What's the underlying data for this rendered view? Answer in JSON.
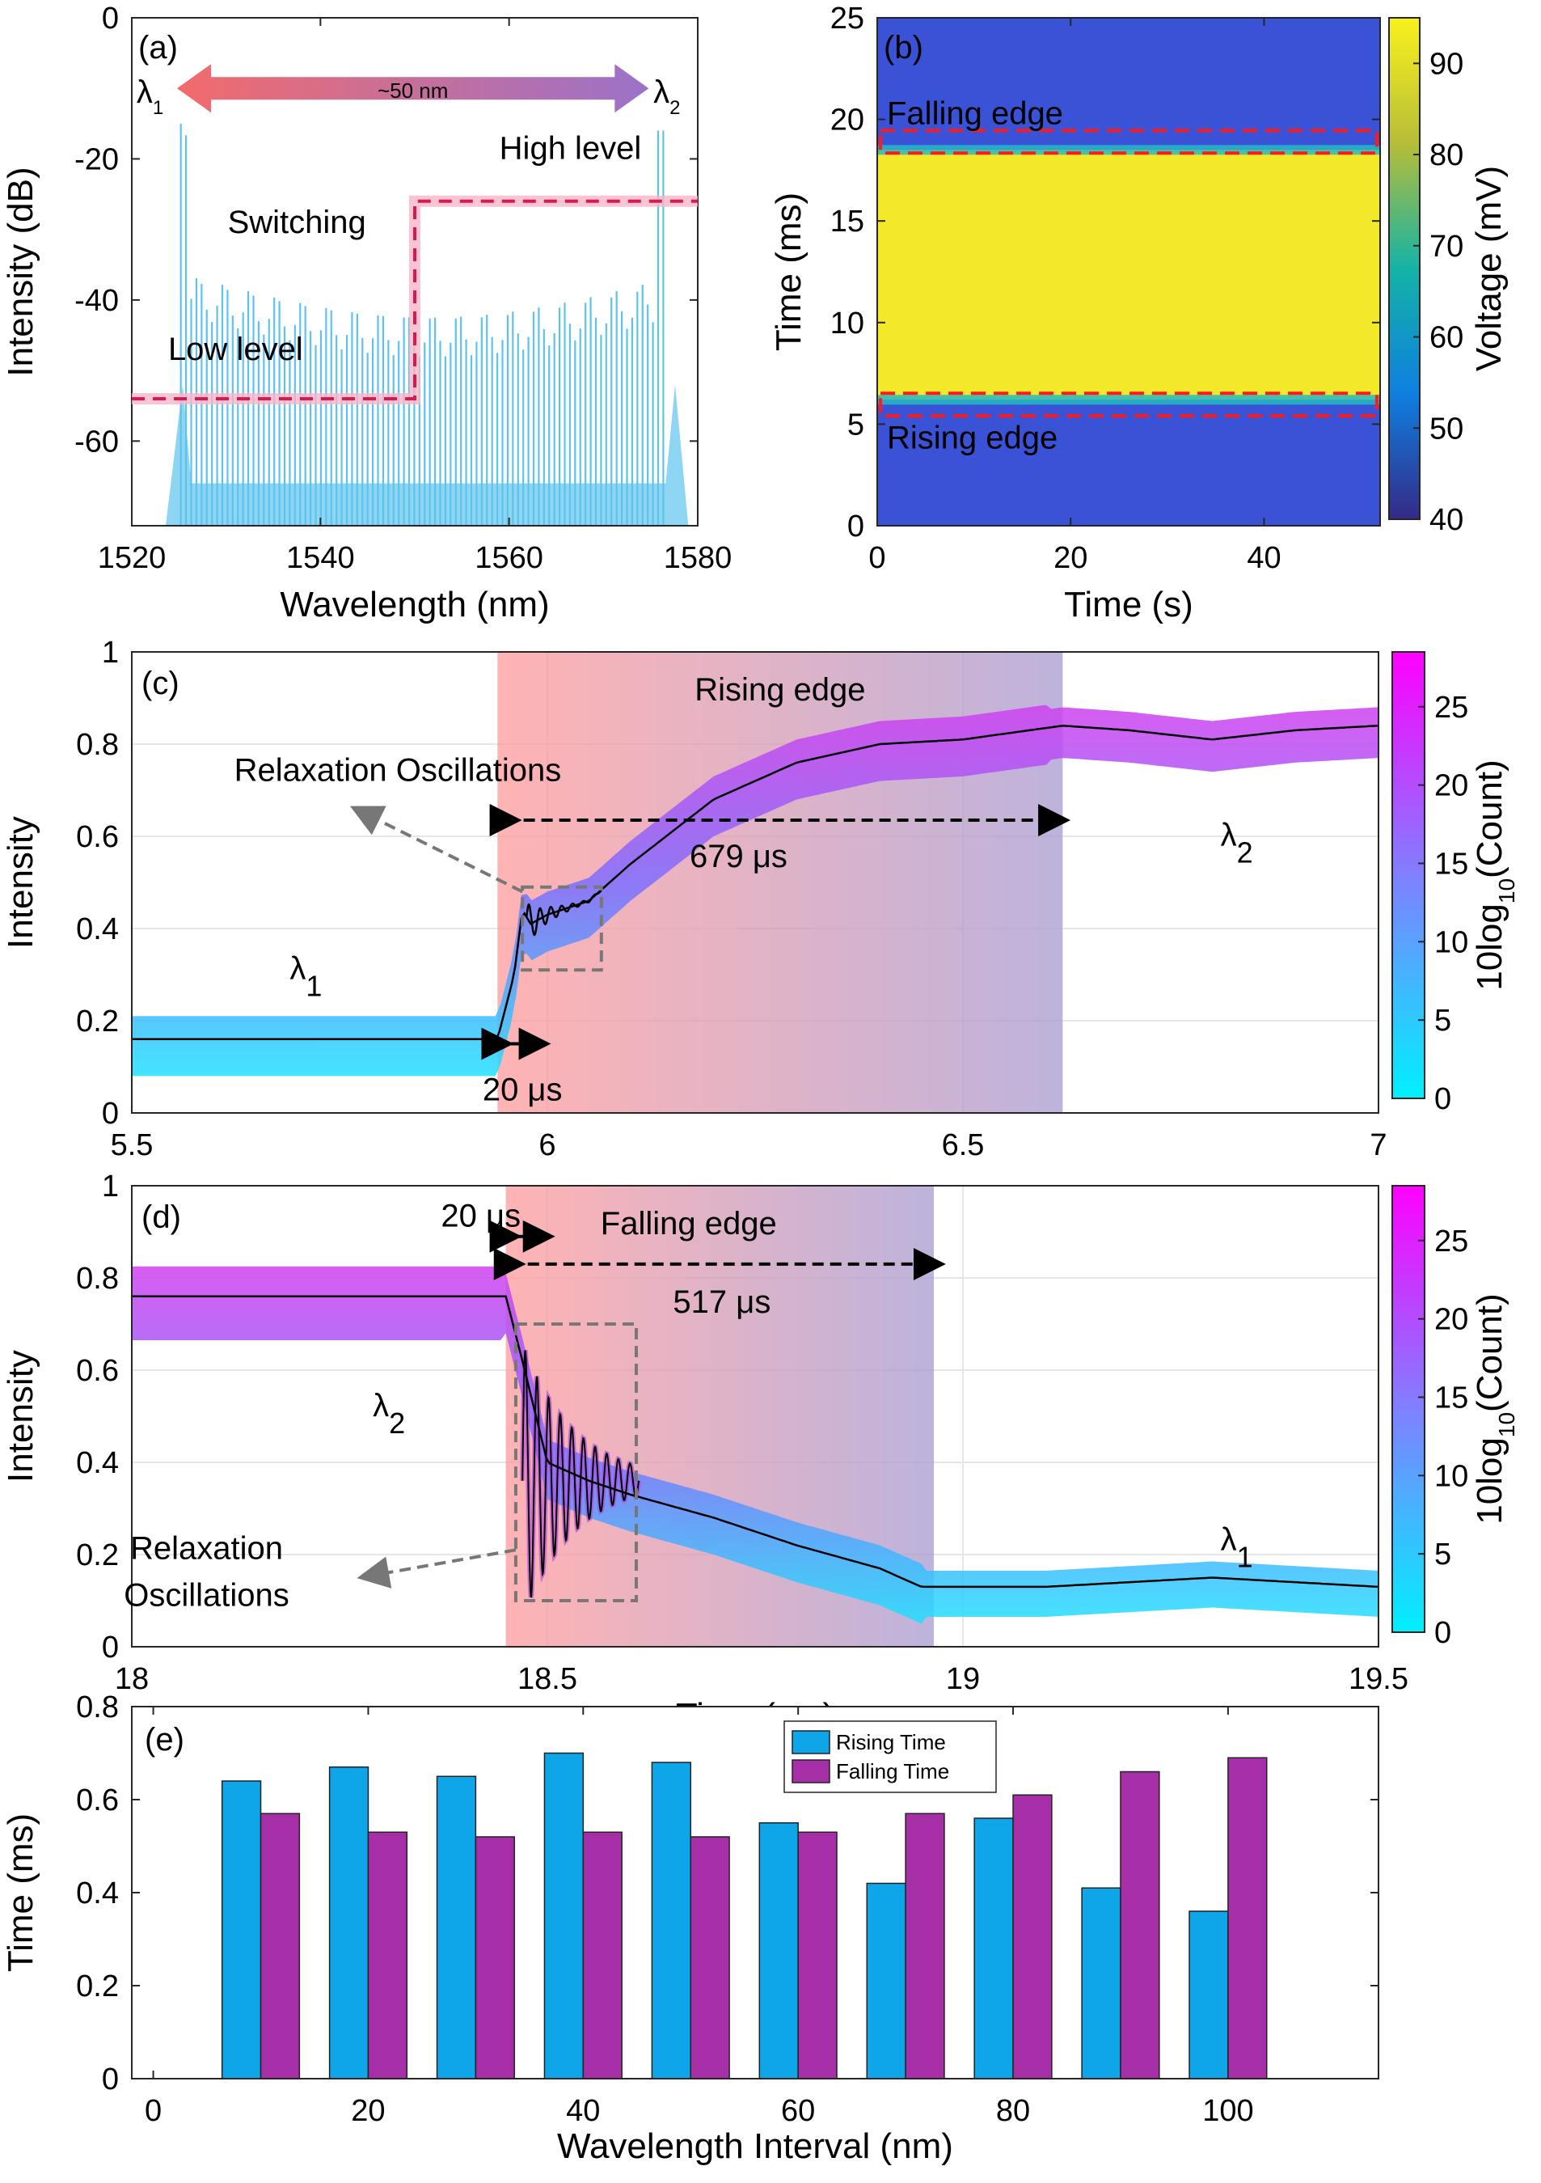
{
  "chart_data": [
    {
      "id": "a",
      "type": "line",
      "panel_label": "(a)",
      "xlabel": "Wavelength (nm)",
      "ylabel": "Intensity (dB)",
      "xlim": [
        1520,
        1580
      ],
      "ylim": [
        -72,
        0
      ],
      "xticks": [
        "1520",
        "1540",
        "1560",
        "1580"
      ],
      "yticks": [
        "0",
        "-20",
        "-40",
        "-60"
      ],
      "annotations": {
        "lambda1": "λ",
        "lambda1_sub": "1",
        "lambda2": "λ",
        "lambda2_sub": "2",
        "span": "~50 nm",
        "high_level": "High level",
        "low_level": "Low level",
        "switching": "Switching"
      },
      "series_color": "#5cc3ee",
      "switch_level_dB": {
        "low": -54,
        "high": -26,
        "switch_nm": 1550
      }
    },
    {
      "id": "b",
      "type": "heatmap",
      "panel_label": "(b)",
      "xlabel": "Time (s)",
      "ylabel": "Time (ms)",
      "xlim": [
        0,
        52
      ],
      "ylim": [
        0,
        25
      ],
      "xticks": [
        "0",
        "20",
        "40"
      ],
      "yticks": [
        "0",
        "5",
        "10",
        "15",
        "20",
        "25"
      ],
      "colorbar": {
        "label": "Voltage (mV)",
        "range": [
          40,
          95
        ],
        "ticks": [
          "40",
          "50",
          "60",
          "70",
          "80",
          "90"
        ]
      },
      "annotations": {
        "falling": "Falling edge",
        "rising": "Rising edge"
      },
      "high_band_ms": [
        6.2,
        18.5
      ]
    },
    {
      "id": "c",
      "type": "line",
      "panel_label": "(c)",
      "xlabel": "",
      "ylabel": "Intensity",
      "xlim": [
        5.5,
        7
      ],
      "ylim": [
        0,
        1
      ],
      "xticks": [
        "5.5",
        "6",
        "6.5",
        "7"
      ],
      "yticks": [
        "0",
        "0.2",
        "0.4",
        "0.6",
        "0.8",
        "1"
      ],
      "colorbar": {
        "label": "10log10(Count)",
        "ticks": [
          "0",
          "5",
          "10",
          "15",
          "20",
          "25"
        ]
      },
      "annotations": {
        "edge": "Rising edge",
        "relax": "Relaxation Oscillations",
        "duration": "679 μs",
        "delay": "20 μs",
        "lambda_left": "λ",
        "lambda_left_sub": "1",
        "lambda_right": "λ",
        "lambda_right_sub": "2"
      },
      "mean_curve": {
        "x": [
          5.5,
          5.94,
          5.96,
          5.97,
          5.98,
          6.0,
          6.05,
          6.1,
          6.15,
          6.2,
          6.3,
          6.4,
          6.5,
          6.62,
          6.7,
          6.8,
          6.9,
          7.0
        ],
        "y": [
          0.16,
          0.16,
          0.3,
          0.44,
          0.41,
          0.43,
          0.46,
          0.54,
          0.61,
          0.68,
          0.76,
          0.8,
          0.81,
          0.84,
          0.83,
          0.81,
          0.83,
          0.84
        ]
      }
    },
    {
      "id": "d",
      "type": "line",
      "panel_label": "(d)",
      "xlabel": "Time (ms)",
      "ylabel": "Intensity",
      "xlim": [
        18,
        19.5
      ],
      "ylim": [
        0,
        1
      ],
      "xticks": [
        "18",
        "18.5",
        "19",
        "19.5"
      ],
      "yticks": [
        "0",
        "0.2",
        "0.4",
        "0.6",
        "0.8",
        "1"
      ],
      "colorbar": {
        "label": "10log10(Count)",
        "ticks": [
          "0",
          "5",
          "10",
          "15",
          "20",
          "25"
        ]
      },
      "annotations": {
        "edge": "Falling edge",
        "relax_line1": "Relaxation",
        "relax_line2": "Oscillations",
        "duration": "517 μs",
        "delay": "20 μs",
        "lambda_left": "λ",
        "lambda_left_sub": "2",
        "lambda_right": "λ",
        "lambda_right_sub": "1"
      },
      "mean_curve": {
        "x": [
          18.0,
          18.45,
          18.47,
          18.5,
          18.55,
          18.6,
          18.7,
          18.8,
          18.9,
          18.95,
          19.0,
          19.1,
          19.2,
          19.3,
          19.4,
          19.5
        ],
        "y": [
          0.76,
          0.76,
          0.62,
          0.4,
          0.36,
          0.33,
          0.28,
          0.22,
          0.17,
          0.13,
          0.13,
          0.13,
          0.14,
          0.15,
          0.14,
          0.13
        ]
      }
    },
    {
      "id": "e",
      "type": "bar",
      "panel_label": "(e)",
      "xlabel": "Wavelength Interval (nm)",
      "ylabel": "Time (ms)",
      "xlim": [
        -2,
        114
      ],
      "ylim": [
        0,
        0.8
      ],
      "xticks": [
        "0",
        "20",
        "40",
        "60",
        "80",
        "100"
      ],
      "yticks": [
        "0",
        "0.2",
        "0.4",
        "0.6",
        "0.8"
      ],
      "categories": [
        10,
        20,
        30,
        40,
        50,
        60,
        70,
        80,
        90,
        100
      ],
      "series": [
        {
          "name": "Rising Time",
          "color": "#0ea5e9",
          "values": [
            0.64,
            0.67,
            0.65,
            0.7,
            0.68,
            0.55,
            0.42,
            0.56,
            0.41,
            0.36
          ]
        },
        {
          "name": "Falling Time",
          "color": "#a62ea6",
          "values": [
            0.57,
            0.53,
            0.52,
            0.53,
            0.52,
            0.53,
            0.57,
            0.61,
            0.66,
            0.69
          ]
        }
      ],
      "legend": "top-center"
    }
  ]
}
